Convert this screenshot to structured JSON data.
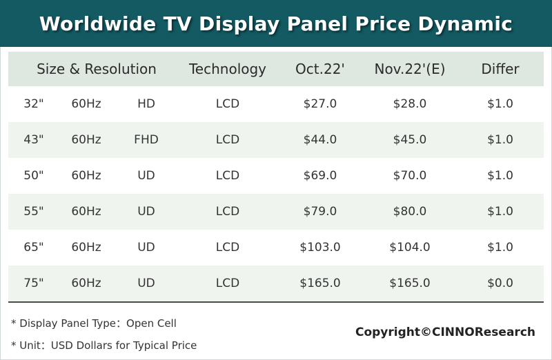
{
  "title": "Worldwide TV Display Panel Price Dynamic",
  "table": {
    "headers": {
      "size_resolution": "Size & Resolution",
      "technology": "Technology",
      "oct": "Oct.22'",
      "nov": "Nov.22'(E)",
      "differ": "Differ"
    },
    "rows": [
      {
        "size": "32\"",
        "hz": "60Hz",
        "res": "HD",
        "tech": "LCD",
        "oct": "$27.0",
        "nov": "$28.0",
        "differ": "$1.0"
      },
      {
        "size": "43\"",
        "hz": "60Hz",
        "res": "FHD",
        "tech": "LCD",
        "oct": "$44.0",
        "nov": "$45.0",
        "differ": "$1.0"
      },
      {
        "size": "50\"",
        "hz": "60Hz",
        "res": "UD",
        "tech": "LCD",
        "oct": "$69.0",
        "nov": "$70.0",
        "differ": "$1.0"
      },
      {
        "size": "55\"",
        "hz": "60Hz",
        "res": "UD",
        "tech": "LCD",
        "oct": "$79.0",
        "nov": "$80.0",
        "differ": "$1.0"
      },
      {
        "size": "65\"",
        "hz": "60Hz",
        "res": "UD",
        "tech": "LCD",
        "oct": "$103.0",
        "nov": "$104.0",
        "differ": "$1.0"
      },
      {
        "size": "75\"",
        "hz": "60Hz",
        "res": "UD",
        "tech": "LCD",
        "oct": "$165.0",
        "nov": "$165.0",
        "differ": "$0.0"
      }
    ]
  },
  "notes": {
    "panel_type": "* Display Panel Type：Open Cell",
    "unit": "* Unit：USD Dollars for Typical Price"
  },
  "copyright": "Copyright©CINNOResearch",
  "colors": {
    "title_bar": "#145a62",
    "header_row": "#dfe8e0",
    "alt_row": "#eff4ef"
  }
}
